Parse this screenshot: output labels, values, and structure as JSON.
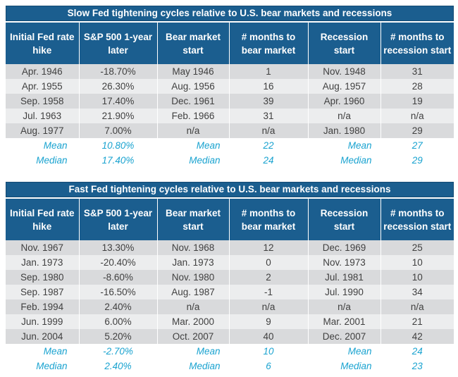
{
  "headers": [
    "Initial Fed rate hike",
    "S&P 500 1-year later",
    "Bear market start",
    "# months to bear market",
    "Recession start",
    "# months to recession start"
  ],
  "slow": {
    "title": "Slow Fed tightening cycles relative to U.S. bear markets and recessions",
    "rows": [
      [
        "Apr. 1946",
        "-18.70%",
        "May 1946",
        "1",
        "Nov. 1948",
        "31"
      ],
      [
        "Apr. 1955",
        "26.30%",
        "Aug. 1956",
        "16",
        "Aug. 1957",
        "28"
      ],
      [
        "Sep. 1958",
        "17.40%",
        "Dec. 1961",
        "39",
        "Apr. 1960",
        "19"
      ],
      [
        "Jul. 1963",
        "21.90%",
        "Feb. 1966",
        "31",
        "n/a",
        "n/a"
      ],
      [
        "Aug. 1977",
        "7.00%",
        "n/a",
        "n/a",
        "Jan. 1980",
        "29"
      ]
    ],
    "mean": {
      "label": "Mean",
      "sp500": "10.80%",
      "bear_label": "Mean",
      "bear_months": "22",
      "rec_label": "Mean",
      "rec_months": "27"
    },
    "median": {
      "label": "Median",
      "sp500": "17.40%",
      "bear_label": "Median",
      "bear_months": "24",
      "rec_label": "Median",
      "rec_months": "29"
    }
  },
  "fast": {
    "title": "Fast Fed tightening cycles relative to U.S. bear markets and recessions",
    "rows": [
      [
        "Nov. 1967",
        "13.30%",
        "Nov. 1968",
        "12",
        "Dec. 1969",
        "25"
      ],
      [
        "Jan. 1973",
        "-20.40%",
        "Jan. 1973",
        "0",
        "Nov. 1973",
        "10"
      ],
      [
        "Sep. 1980",
        "-8.60%",
        "Nov. 1980",
        "2",
        "Jul. 1981",
        "10"
      ],
      [
        "Sep. 1987",
        "-16.50%",
        "Aug. 1987",
        "-1",
        "Jul. 1990",
        "34"
      ],
      [
        "Feb. 1994",
        "2.40%",
        "n/a",
        "n/a",
        "n/a",
        "n/a"
      ],
      [
        "Jun. 1999",
        "6.00%",
        "Mar. 2000",
        "9",
        "Mar. 2001",
        "21"
      ],
      [
        "Jun. 2004",
        "5.20%",
        "Oct. 2007",
        "40",
        "Dec. 2007",
        "42"
      ]
    ],
    "mean": {
      "label": "Mean",
      "sp500": "-2.70%",
      "bear_label": "Mean",
      "bear_months": "10",
      "rec_label": "Mean",
      "rec_months": "24"
    },
    "median": {
      "label": "Median",
      "sp500": "2.40%",
      "bear_label": "Median",
      "bear_months": "6",
      "rec_label": "Median",
      "rec_months": "23"
    }
  },
  "colors": {
    "header_bg": "#1b5e8f",
    "row_dark": "#d9dadc",
    "row_light": "#ecedee",
    "stat_text": "#1aa3d0"
  }
}
